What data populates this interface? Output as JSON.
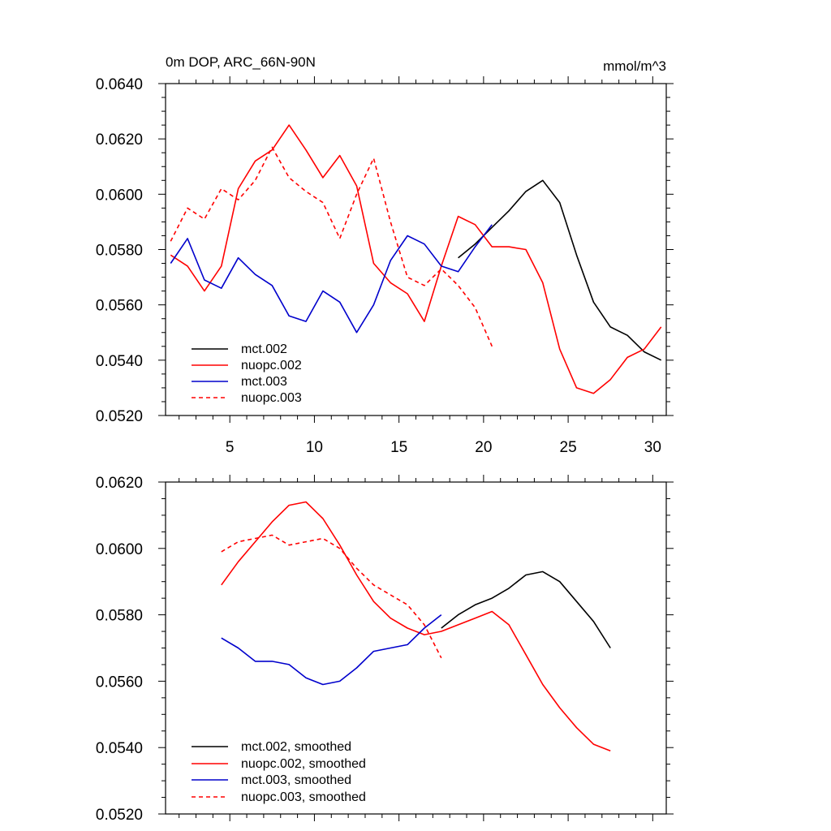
{
  "colors": {
    "black": "#000000",
    "red": "#ff0000",
    "blue": "#0000cc"
  },
  "chart_data": [
    {
      "type": "line",
      "title": "0m DOP, ARC_66N-90N",
      "units": "mmol/m^3",
      "xlim": [
        1.2,
        30.8
      ],
      "ylim": [
        0.052,
        0.064
      ],
      "x_ticks": [
        5,
        10,
        15,
        20,
        25,
        30
      ],
      "x_tick_labels": [
        "5",
        "10",
        "15",
        "20",
        "25",
        "30"
      ],
      "y_ticks": [
        0.052,
        0.054,
        0.056,
        0.058,
        0.06,
        0.062,
        0.064
      ],
      "y_tick_labels": [
        "0.0520",
        "0.0540",
        "0.0560",
        "0.0580",
        "0.0600",
        "0.0620",
        "0.0640"
      ],
      "legend_position": "bottom-left",
      "series": [
        {
          "name": "mct.002",
          "color": "black",
          "dash": "solid",
          "x": [
            18.5,
            19.5,
            20.5,
            21.5,
            22.5,
            23.5,
            24.5,
            25.5,
            26.5,
            27.5,
            28.5,
            29.5,
            30.5
          ],
          "values": [
            0.0577,
            0.0582,
            0.0588,
            0.0594,
            0.0601,
            0.0605,
            0.0597,
            0.0578,
            0.0561,
            0.0552,
            0.0549,
            0.0543,
            0.054
          ]
        },
        {
          "name": "nuopc.002",
          "color": "red",
          "dash": "solid",
          "x": [
            1.5,
            2.5,
            3.5,
            4.5,
            5.5,
            6.5,
            7.5,
            8.5,
            9.5,
            10.5,
            11.5,
            12.5,
            13.5,
            14.5,
            15.5,
            16.5,
            17.5,
            18.5,
            19.5,
            20.5,
            21.5,
            22.5,
            23.5,
            24.5,
            25.5,
            26.5,
            27.5,
            28.5,
            29.5,
            30.5
          ],
          "values": [
            0.0578,
            0.0574,
            0.0565,
            0.0574,
            0.0602,
            0.0612,
            0.0616,
            0.0625,
            0.0616,
            0.0606,
            0.0614,
            0.0603,
            0.0575,
            0.0568,
            0.0564,
            0.0554,
            0.0574,
            0.0592,
            0.0589,
            0.0581,
            0.0581,
            0.058,
            0.0568,
            0.0544,
            0.053,
            0.0528,
            0.0533,
            0.0541,
            0.0544,
            0.0552
          ]
        },
        {
          "name": "mct.003",
          "color": "blue",
          "dash": "solid",
          "x": [
            1.5,
            2.5,
            3.5,
            4.5,
            5.5,
            6.5,
            7.5,
            8.5,
            9.5,
            10.5,
            11.5,
            12.5,
            13.5,
            14.5,
            15.5,
            16.5,
            17.5,
            18.5,
            19.5,
            20.5
          ],
          "values": [
            0.0575,
            0.0584,
            0.0569,
            0.0566,
            0.0577,
            0.0571,
            0.0567,
            0.0556,
            0.0554,
            0.0565,
            0.0561,
            0.055,
            0.056,
            0.0576,
            0.0585,
            0.0582,
            0.0574,
            0.0572,
            0.0581,
            0.0589
          ]
        },
        {
          "name": "nuopc.003",
          "color": "red",
          "dash": "dashed",
          "x": [
            1.5,
            2.5,
            3.5,
            4.5,
            5.5,
            6.5,
            7.5,
            8.5,
            9.5,
            10.5,
            11.5,
            12.5,
            13.5,
            14.5,
            15.5,
            16.5,
            17.5,
            18.5,
            19.5,
            20.5
          ],
          "values": [
            0.0583,
            0.0595,
            0.0591,
            0.0602,
            0.0598,
            0.0605,
            0.0617,
            0.0606,
            0.0601,
            0.0597,
            0.0584,
            0.06,
            0.0613,
            0.059,
            0.057,
            0.0567,
            0.0573,
            0.0567,
            0.0559,
            0.0545
          ]
        }
      ]
    },
    {
      "type": "line",
      "title": "",
      "units": "",
      "xlim": [
        1.2,
        30.8
      ],
      "ylim": [
        0.052,
        0.062
      ],
      "x_ticks": [
        5,
        10,
        15,
        20,
        25,
        30
      ],
      "x_tick_labels": [],
      "y_ticks": [
        0.052,
        0.054,
        0.056,
        0.058,
        0.06,
        0.062
      ],
      "y_tick_labels": [
        "0.0520",
        "0.0540",
        "0.0560",
        "0.0580",
        "0.0600",
        "0.0620"
      ],
      "legend_position": "bottom-left",
      "series": [
        {
          "name": "mct.002, smoothed",
          "color": "black",
          "dash": "solid",
          "x": [
            17.5,
            18.5,
            19.5,
            20.5,
            21.5,
            22.5,
            23.5,
            24.5,
            25.5,
            26.5,
            27.5
          ],
          "values": [
            0.0576,
            0.058,
            0.0583,
            0.0585,
            0.0588,
            0.0592,
            0.0593,
            0.059,
            0.0584,
            0.0578,
            0.057
          ]
        },
        {
          "name": "nuopc.002, smoothed",
          "color": "red",
          "dash": "solid",
          "x": [
            4.5,
            5.5,
            6.5,
            7.5,
            8.5,
            9.5,
            10.5,
            11.5,
            12.5,
            13.5,
            14.5,
            15.5,
            16.5,
            17.5,
            18.5,
            19.5,
            20.5,
            21.5,
            22.5,
            23.5,
            24.5,
            25.5,
            26.5,
            27.5
          ],
          "values": [
            0.0589,
            0.0596,
            0.0602,
            0.0608,
            0.0613,
            0.0614,
            0.0609,
            0.0601,
            0.0592,
            0.0584,
            0.0579,
            0.0576,
            0.0574,
            0.0575,
            0.0577,
            0.0579,
            0.0581,
            0.0577,
            0.0568,
            0.0559,
            0.0552,
            0.0546,
            0.0541,
            0.0539
          ]
        },
        {
          "name": "mct.003, smoothed",
          "color": "blue",
          "dash": "solid",
          "x": [
            4.5,
            5.5,
            6.5,
            7.5,
            8.5,
            9.5,
            10.5,
            11.5,
            12.5,
            13.5,
            14.5,
            15.5,
            16.5,
            17.5
          ],
          "values": [
            0.0573,
            0.057,
            0.0566,
            0.0566,
            0.0565,
            0.0561,
            0.0559,
            0.056,
            0.0564,
            0.0569,
            0.057,
            0.0571,
            0.0576,
            0.058
          ]
        },
        {
          "name": "nuopc.003, smoothed",
          "color": "red",
          "dash": "dashed",
          "x": [
            4.5,
            5.5,
            6.5,
            7.5,
            8.5,
            9.5,
            10.5,
            11.5,
            12.5,
            13.5,
            14.5,
            15.5,
            16.5,
            17.5
          ],
          "values": [
            0.0599,
            0.0602,
            0.0603,
            0.0604,
            0.0601,
            0.0602,
            0.0603,
            0.06,
            0.0594,
            0.0589,
            0.0586,
            0.0583,
            0.0577,
            0.0567
          ]
        }
      ]
    }
  ]
}
